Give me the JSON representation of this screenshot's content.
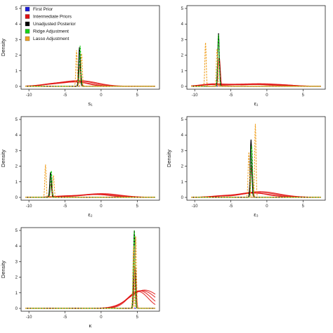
{
  "legend": [
    {
      "label": "First Prior",
      "color": "#1a1ad6"
    },
    {
      "label": "Intermediate Priors",
      "color": "#e01010"
    },
    {
      "label": "Unadjusted Posterior",
      "color": "#000000"
    },
    {
      "label": "Ridge Adjustment",
      "color": "#18d018"
    },
    {
      "label": "Lasso Adjustment",
      "color": "#f0a020"
    }
  ],
  "chart_data": [
    {
      "type": "line",
      "ylabel": "Density",
      "xlabel": "s₁",
      "xlim": [
        -10.5,
        7.5
      ],
      "ylim": [
        0,
        5
      ],
      "xticks": [
        -10,
        -5,
        0,
        5
      ],
      "yticks": [
        0,
        1,
        2,
        3,
        4,
        5
      ],
      "grid": false,
      "legend_position": "top-left",
      "peaks": {
        "unadjusted": [
          -3.0,
          2.5
        ],
        "ridge": [
          -2.9,
          2.6
        ],
        "lasso": [
          -3.4,
          2.3
        ],
        "lasso_2": [
          -2.7,
          2.1
        ]
      },
      "intermediate_bump": [
        [
          -7.0,
          0.12
        ],
        [
          -5.0,
          0.15
        ],
        [
          -3.0,
          0.22
        ],
        [
          -1.5,
          0.1
        ]
      ]
    },
    {
      "type": "line",
      "ylabel": "",
      "xlabel": "ε₁",
      "xlim": [
        -10.5,
        7.5
      ],
      "ylim": [
        0,
        5
      ],
      "xticks": [
        -10,
        -5,
        0,
        5
      ],
      "yticks": [
        0,
        1,
        2,
        3,
        4,
        5
      ],
      "grid": false,
      "peaks": {
        "unadjusted": [
          -6.7,
          3.4
        ],
        "ridge": [
          -6.7,
          3.3
        ],
        "lasso": [
          -8.5,
          2.8
        ],
        "lasso_2": [
          -6.9,
          2.4
        ]
      },
      "intermediate_bump": [
        [
          -7.5,
          0.15
        ],
        [
          -4.0,
          0.1
        ],
        [
          -1.0,
          0.12
        ],
        [
          2.0,
          0.08
        ]
      ]
    },
    {
      "type": "line",
      "ylabel": "Density",
      "xlabel": "ε₂",
      "xlim": [
        -10.5,
        7.5
      ],
      "ylim": [
        0,
        5
      ],
      "xticks": [
        -10,
        -5,
        0,
        5
      ],
      "yticks": [
        0,
        1,
        2,
        3,
        4,
        5
      ],
      "grid": false,
      "peaks": {
        "unadjusted": [
          -7.0,
          1.6
        ],
        "ridge": [
          -6.9,
          1.7
        ],
        "lasso": [
          -7.7,
          2.1
        ],
        "lasso_2": [
          -6.6,
          1.4
        ]
      },
      "intermediate_bump": [
        [
          -5.0,
          0.08
        ],
        [
          -2.0,
          0.1
        ],
        [
          0.0,
          0.15
        ],
        [
          2.0,
          0.07
        ]
      ]
    },
    {
      "type": "line",
      "ylabel": "Density",
      "xlabel": "ε₃",
      "xlim": [
        -10.5,
        7.5
      ],
      "ylim": [
        0,
        5
      ],
      "xticks": [
        -10,
        -5,
        0,
        5
      ],
      "yticks": [
        0,
        1,
        2,
        3,
        4,
        5
      ],
      "grid": false,
      "peaks": {
        "unadjusted": [
          -2.2,
          3.7
        ],
        "ridge": [
          -2.1,
          3.3
        ],
        "lasso": [
          -1.6,
          4.7
        ],
        "lasso_2": [
          -2.5,
          2.9
        ]
      },
      "intermediate_bump": [
        [
          -6.0,
          0.1
        ],
        [
          -3.0,
          0.15
        ],
        [
          -1.0,
          0.25
        ],
        [
          1.5,
          0.1
        ]
      ]
    },
    {
      "type": "line",
      "ylabel": "Density",
      "xlabel": "κ",
      "xlim": [
        -10.5,
        7.5
      ],
      "ylim": [
        0,
        5
      ],
      "xticks": [
        -10,
        -5,
        0,
        5
      ],
      "yticks": [
        0,
        1,
        2,
        3,
        4,
        5
      ],
      "grid": false,
      "peaks": {
        "unadjusted": [
          4.6,
          5.0
        ],
        "ridge": [
          4.6,
          5.2
        ],
        "lasso": [
          4.8,
          4.6
        ],
        "lasso_2": [
          4.5,
          4.0
        ]
      },
      "intermediate_bump": [
        [
          4.5,
          0.3
        ],
        [
          5.3,
          0.5
        ],
        [
          6.0,
          0.45
        ],
        [
          6.6,
          0.2
        ]
      ]
    }
  ]
}
